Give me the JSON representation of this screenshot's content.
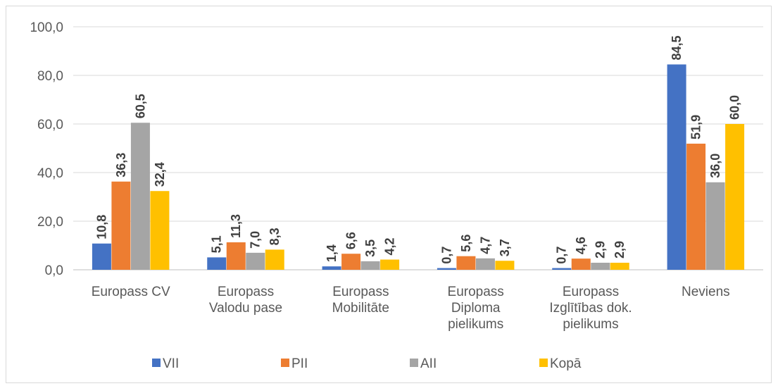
{
  "chart_data": {
    "type": "bar",
    "categories": [
      [
        "Europass CV"
      ],
      [
        "Europass",
        "Valodu pase"
      ],
      [
        "Europass",
        "Mobilitāte"
      ],
      [
        "Europass",
        "Diploma",
        "pielikums"
      ],
      [
        "Europass",
        "Izglītības dok.",
        "pielikums"
      ],
      [
        "Neviens"
      ]
    ],
    "series": [
      {
        "name": "VII",
        "color": "#4472C4",
        "values": [
          10.8,
          5.1,
          1.4,
          0.7,
          0.7,
          84.5
        ],
        "labels": [
          "10,8",
          "5,1",
          "1,4",
          "0,7",
          "0,7",
          "84,5"
        ]
      },
      {
        "name": "PII",
        "color": "#ED7D31",
        "values": [
          36.3,
          11.3,
          6.6,
          5.6,
          4.6,
          51.9
        ],
        "labels": [
          "36,3",
          "11,3",
          "6,6",
          "5,6",
          "4,6",
          "51,9"
        ]
      },
      {
        "name": "AII",
        "color": "#A5A5A5",
        "values": [
          60.5,
          7.0,
          3.5,
          4.7,
          2.9,
          36.0
        ],
        "labels": [
          "60,5",
          "7,0",
          "3,5",
          "4,7",
          "2,9",
          "36,0"
        ]
      },
      {
        "name": "Kopā",
        "color": "#FFC000",
        "values": [
          32.4,
          8.3,
          4.2,
          3.7,
          2.9,
          60.0
        ],
        "labels": [
          "32,4",
          "8,3",
          "4,2",
          "3,7",
          "2,9",
          "60,0"
        ]
      }
    ],
    "ylim": [
      0,
      100
    ],
    "yticks": [
      0,
      20,
      40,
      60,
      80,
      100
    ],
    "ytick_labels": [
      "0,0",
      "20,0",
      "40,0",
      "60,0",
      "80,0",
      "100,0"
    ],
    "grid": true,
    "legend": "bottom",
    "title": "",
    "xlabel": "",
    "ylabel": ""
  }
}
